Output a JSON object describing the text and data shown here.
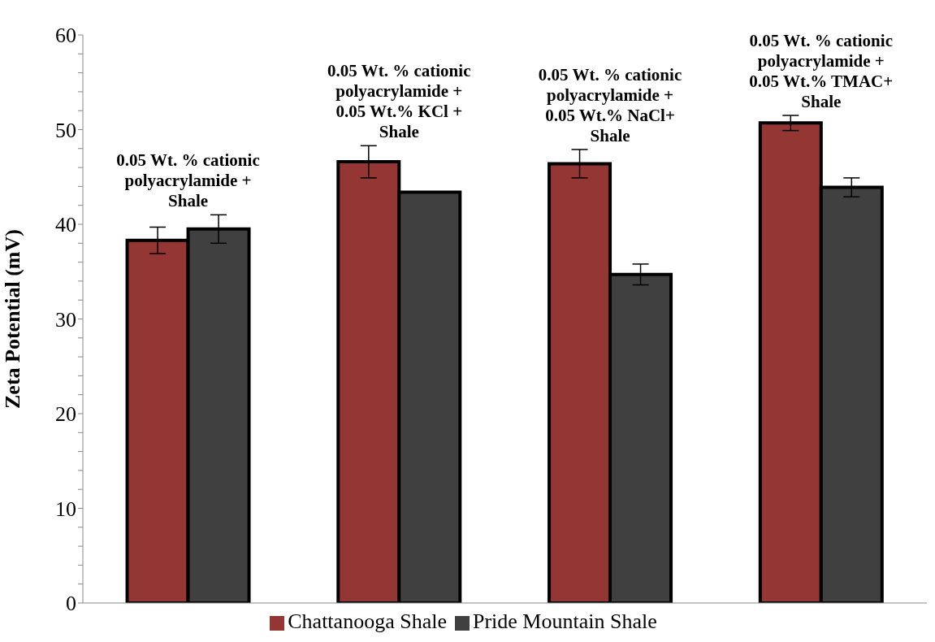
{
  "chart_data": {
    "type": "bar",
    "ylabel": "Zeta Potential (mV)",
    "categories": [
      "0.05 Wt. % cationic polyacrylamide + Shale",
      "0.05 Wt. % cationic polyacrylamide + 0.05 Wt.% KCl + Shale",
      "0.05 Wt. % cationic polyacrylamide + 0.05 Wt.% NaCl+ Shale",
      "0.05 Wt. % cationic polyacrylamide + 0.05 Wt.% TMAC+ Shale"
    ],
    "series": [
      {
        "name": "Chattanooga Shale",
        "color": "#943634",
        "values": [
          38.3,
          46.6,
          46.4,
          50.7
        ],
        "errors": [
          1.4,
          1.7,
          1.5,
          0.8
        ]
      },
      {
        "name": "Pride Mountain Shale",
        "color": "#404040",
        "values": [
          39.5,
          43.4,
          34.7,
          43.9
        ],
        "errors": [
          1.5,
          null,
          1.1,
          1.0
        ]
      }
    ],
    "ylim": [
      0,
      60
    ],
    "yticks": [
      0,
      {
        "value": 2,
        "label": null
      },
      {
        "value": 4,
        "label": null
      },
      {
        "value": 6,
        "label": null
      },
      {
        "value": 8,
        "label": null
      },
      10,
      {
        "value": 12,
        "label": null
      },
      {
        "value": 14,
        "label": null
      },
      {
        "value": 16,
        "label": null
      },
      {
        "value": 18,
        "label": null
      },
      20,
      {
        "value": 22,
        "label": null
      },
      {
        "value": 24,
        "label": null
      },
      {
        "value": 26,
        "label": null
      },
      {
        "value": 28,
        "label": null
      },
      30,
      {
        "value": 32,
        "label": null
      },
      {
        "value": 34,
        "label": null
      },
      {
        "value": 36,
        "label": null
      },
      {
        "value": 38,
        "label": null
      },
      40,
      {
        "value": 42,
        "label": null
      },
      {
        "value": 44,
        "label": null
      },
      {
        "value": 46,
        "label": null
      },
      {
        "value": 48,
        "label": null
      },
      50,
      {
        "value": 52,
        "label": null
      },
      {
        "value": 54,
        "label": null
      },
      {
        "value": 56,
        "label": null
      },
      {
        "value": 58,
        "label": null
      },
      60
    ],
    "grid": false,
    "legend": "bottom"
  }
}
